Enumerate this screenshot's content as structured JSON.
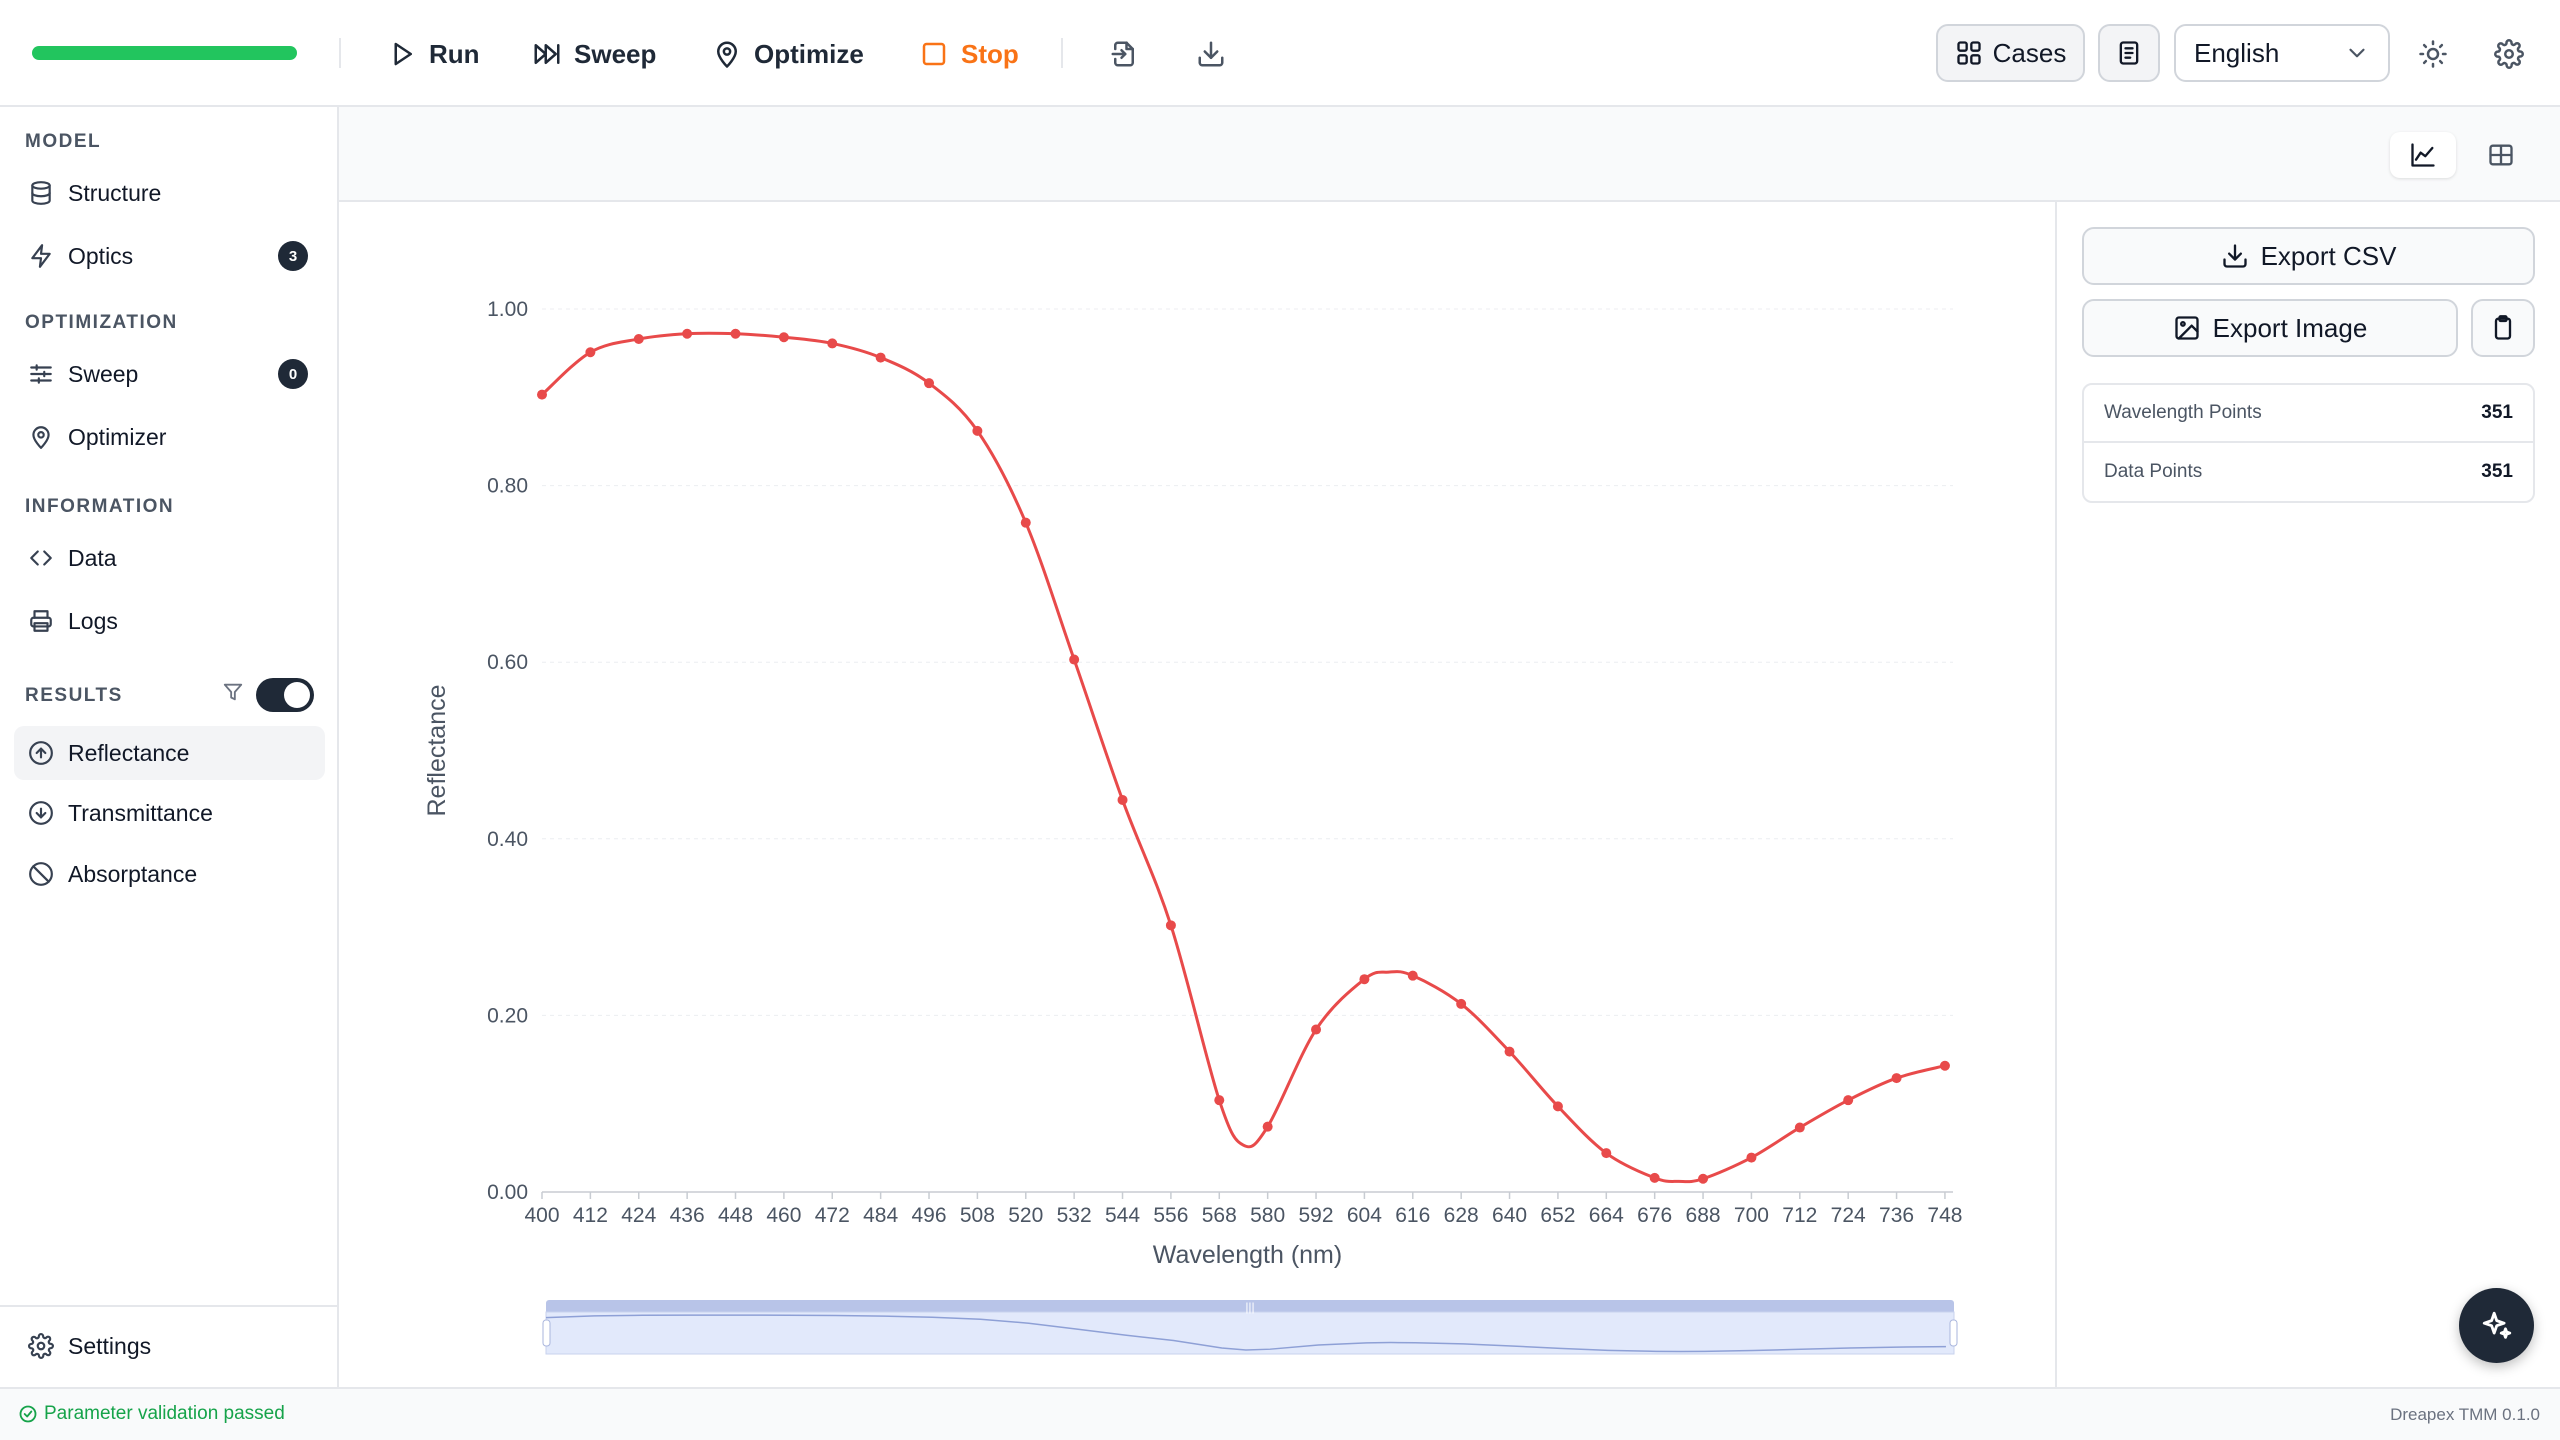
{
  "toolbar": {
    "progress_percent": 100,
    "run_label": "Run",
    "sweep_label": "Sweep",
    "optimize_label": "Optimize",
    "stop_label": "Stop",
    "cases_label": "Cases",
    "language_selected": "English",
    "accent_color": "#22c55e",
    "stop_color": "#f97316"
  },
  "sidebar": {
    "model_title": "MODEL",
    "structure_label": "Structure",
    "optics_label": "Optics",
    "optics_badge": "3",
    "optimization_title": "OPTIMIZATION",
    "sweep_label": "Sweep",
    "sweep_badge": "0",
    "optimizer_label": "Optimizer",
    "information_title": "INFORMATION",
    "data_label": "Data",
    "logs_label": "Logs",
    "results_title": "RESULTS",
    "results_toggle_on": true,
    "reflectance_label": "Reflectance",
    "transmittance_label": "Transmittance",
    "absorptance_label": "Absorptance",
    "settings_label": "Settings"
  },
  "panel": {
    "export_csv_label": "Export CSV",
    "export_image_label": "Export Image",
    "wavelength_points_label": "Wavelength Points",
    "wavelength_points_value": "351",
    "data_points_label": "Data Points",
    "data_points_value": "351"
  },
  "status": {
    "message": "Parameter validation passed",
    "version": "Dreapex TMM 0.1.0"
  },
  "chart_data": {
    "type": "line",
    "xlabel": "Wavelength (nm)",
    "ylabel": "Reflectance",
    "xlim": [
      400,
      750
    ],
    "ylim": [
      0,
      1
    ],
    "yticks": [
      "0.00",
      "0.20",
      "0.40",
      "0.60",
      "0.80",
      "1.00"
    ],
    "xticks": [
      "400",
      "412",
      "424",
      "436",
      "448",
      "460",
      "472",
      "484",
      "496",
      "508",
      "520",
      "532",
      "544",
      "556",
      "568",
      "580",
      "592",
      "604",
      "616",
      "628",
      "640",
      "652",
      "664",
      "676",
      "688",
      "700",
      "712",
      "724",
      "736",
      "748"
    ],
    "grid": true,
    "legend": "none",
    "series": [
      {
        "color": "#e84a4a",
        "x": [
          400,
          412,
          424,
          436,
          448,
          460,
          472,
          484,
          496,
          508,
          520,
          532,
          544,
          556,
          568,
          580,
          592,
          604,
          616,
          628,
          640,
          652,
          664,
          676,
          688,
          700,
          712,
          724,
          736,
          748
        ],
        "y": [
          0.903,
          0.951,
          0.966,
          0.972,
          0.972,
          0.968,
          0.961,
          0.945,
          0.916,
          0.862,
          0.758,
          0.603,
          0.444,
          0.302,
          0.104,
          0.074,
          0.184,
          0.241,
          0.245,
          0.213,
          0.159,
          0.097,
          0.044,
          0.016,
          0.015,
          0.039,
          0.073,
          0.104,
          0.129,
          0.143
        ]
      }
    ],
    "curve": {
      "x": [
        400,
        412,
        424,
        436,
        448,
        460,
        472,
        484,
        496,
        508,
        520,
        532,
        544,
        556,
        568,
        574,
        580,
        592,
        604,
        610,
        616,
        628,
        640,
        652,
        664,
        676,
        682,
        688,
        700,
        712,
        724,
        736,
        748
      ],
      "y": [
        0.903,
        0.951,
        0.966,
        0.972,
        0.972,
        0.968,
        0.961,
        0.945,
        0.916,
        0.862,
        0.758,
        0.603,
        0.444,
        0.302,
        0.104,
        0.053,
        0.074,
        0.184,
        0.241,
        0.249,
        0.245,
        0.213,
        0.159,
        0.097,
        0.044,
        0.016,
        0.012,
        0.015,
        0.039,
        0.073,
        0.104,
        0.129,
        0.143
      ]
    }
  }
}
